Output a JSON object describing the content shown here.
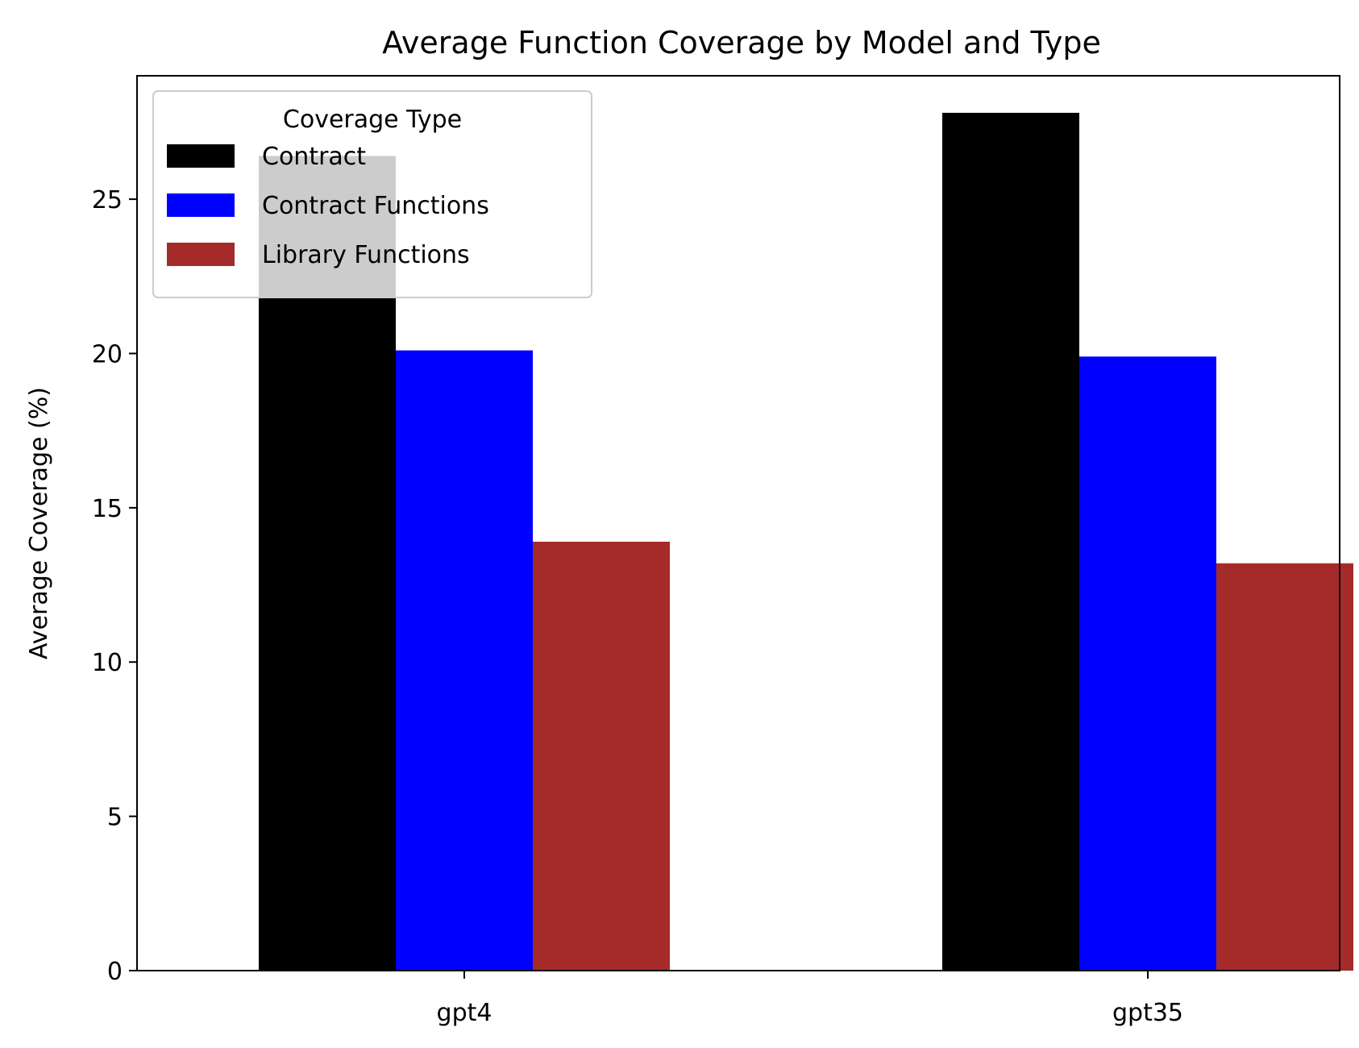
{
  "chart_data": {
    "type": "bar",
    "title": "Average Function Coverage by Model and Type",
    "xlabel": "",
    "ylabel": "Average Coverage (%)",
    "categories": [
      "gpt4",
      "gpt35"
    ],
    "series": [
      {
        "name": "Contract",
        "color": "#000000",
        "values": [
          26.4,
          27.8
        ]
      },
      {
        "name": "Contract Functions",
        "color": "#0000ff",
        "values": [
          20.1,
          19.9
        ]
      },
      {
        "name": "Library Functions",
        "color": "#a52a2a",
        "values": [
          13.9,
          13.2
        ]
      }
    ],
    "ylim": [
      0,
      29
    ],
    "yticks": [
      0,
      5,
      10,
      15,
      20,
      25
    ],
    "grid": false,
    "legend": {
      "title": "Coverage Type",
      "position": "top-left"
    }
  }
}
